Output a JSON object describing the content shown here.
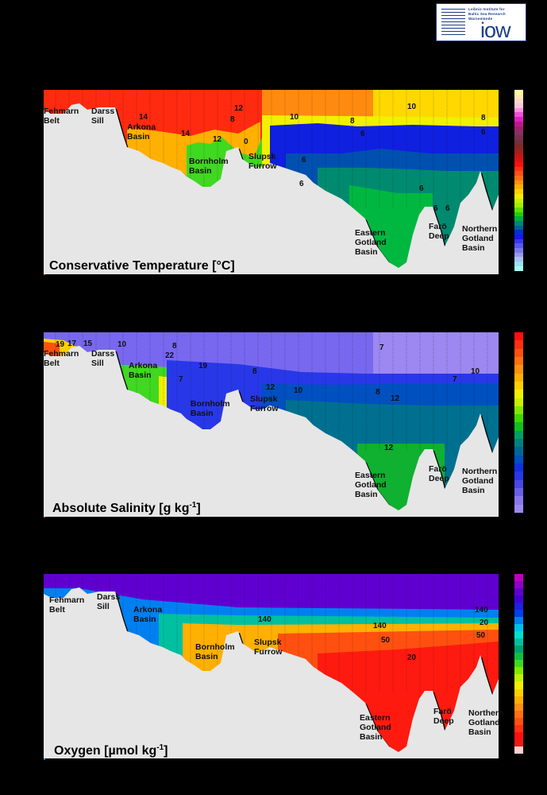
{
  "logo": {
    "line1": "Leibniz Institute for",
    "line2": "Baltic Sea Research",
    "line3": "Warnemünde",
    "mark": "iow"
  },
  "chart_data": [
    {
      "type": "heatmap",
      "title": "Conservative Temperature [°C]",
      "basins": [
        "Fehmarn Belt",
        "Darss Sill",
        "Arkona Basin",
        "Bornholm Basin",
        "Slupsk Furrow",
        "Eastern Gotland Basin",
        "Farö Deep",
        "Northern Gotland Basin"
      ],
      "contour_labels": [
        "14",
        "12",
        "8",
        "14",
        "12",
        "0",
        "10",
        "6",
        "8",
        "6",
        "6",
        "10",
        "8",
        "6",
        "6",
        "6",
        "6"
      ],
      "colorbar": [
        "#fffaa0",
        "#ffe8b0",
        "#ffd8c8",
        "#ffc8d8",
        "#ff90e0",
        "#f050d8",
        "#e020c0",
        "#c01890",
        "#a02070",
        "#883060",
        "#7a3050",
        "#703040",
        "#802828",
        "#a02020",
        "#c01818",
        "#e01010",
        "#ff1010",
        "#ff3010",
        "#ff5010",
        "#ff7010",
        "#ff9010",
        "#ffb000",
        "#ffd000",
        "#f0f000",
        "#c8f000",
        "#a0f000",
        "#60e000",
        "#20d000",
        "#00b040",
        "#008870",
        "#0060a0",
        "#0030d0",
        "#1818f0",
        "#3838f0",
        "#5858f0",
        "#7878f0",
        "#9898f0",
        "#a8c0f0",
        "#a0e0f0",
        "#a0fff8"
      ]
    },
    {
      "type": "heatmap",
      "title": "Absolute Salinity [g kg",
      "title_sup": "-1",
      "title_end": "]",
      "basins": [
        "Fehmarn Belt",
        "Darss Sill",
        "Arkona Basin",
        "Bornholm Basin",
        "Slupsk Furrow",
        "Eastern Gotland Basin",
        "Farö Deep",
        "Northern Gotland Basin"
      ],
      "contour_labels": [
        "19",
        "17",
        "15",
        "10",
        "22",
        "8",
        "19",
        "7",
        "8",
        "12",
        "10",
        "7",
        "8",
        "7",
        "10",
        "12",
        "12"
      ],
      "colorbar": [
        "#ff1010",
        "#ff3010",
        "#ff5010",
        "#ff7010",
        "#ff9010",
        "#ffb000",
        "#ffd000",
        "#f0f000",
        "#c8f000",
        "#80e800",
        "#40d800",
        "#10c020",
        "#00a060",
        "#008080",
        "#006898",
        "#0050c0",
        "#1030e0",
        "#2838e8",
        "#4848e8",
        "#6860e8",
        "#8878f0",
        "#9c88f0"
      ]
    },
    {
      "type": "heatmap",
      "title": "Oxygen [µmol kg",
      "title_sup": "-1",
      "title_end": "]",
      "basins": [
        "Fehmarn Belt",
        "Darss Sill",
        "Arkona Basin",
        "Bornholm Basin",
        "Slupsk Furrow",
        "Eastern Gotland Basin",
        "Farö Deep",
        "Northern Gotland Basin"
      ],
      "contour_labels": [
        "140",
        "140",
        "50",
        "20",
        "140",
        "20",
        "50"
      ],
      "colorbar": [
        "#c000c0",
        "#9000c8",
        "#6000d0",
        "#4000d8",
        "#2020e0",
        "#0040f0",
        "#0080f0",
        "#00c0f0",
        "#00e0d0",
        "#00c0a0",
        "#00a070",
        "#10c040",
        "#40d820",
        "#80e800",
        "#c0f000",
        "#f0f000",
        "#ffd000",
        "#ffb000",
        "#ff9010",
        "#ff7010",
        "#ff5010",
        "#ff3010",
        "#ff1010",
        "#f01818",
        "#ffd0d0"
      ]
    }
  ]
}
